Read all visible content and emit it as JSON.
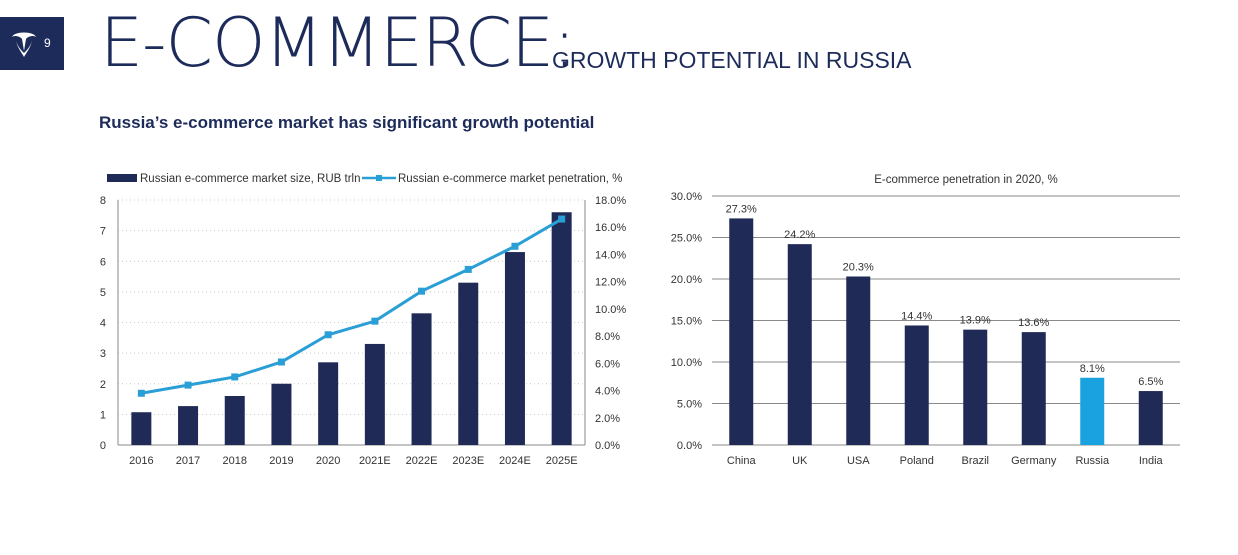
{
  "header": {
    "page_number": "9",
    "title": "E-COMMERCE:",
    "subtitle": "GROWTH POTENTIAL IN RUSSIA"
  },
  "section_title": "Russia’s e-commerce market has significant growth potential",
  "colors": {
    "navy": "#1c2b5a",
    "bar_navy": "#1f2a56",
    "line_blue": "#2a9fd6",
    "highlight_blue": "#1aa1e0"
  },
  "chart_data": [
    {
      "type": "bar+line",
      "categories": [
        "2016",
        "2017",
        "2018",
        "2019",
        "2020",
        "2021E",
        "2022E",
        "2023E",
        "2024E",
        "2025E"
      ],
      "series": [
        {
          "name": "Russian e-commerce market size, RUB trln",
          "type": "bar",
          "axis": "left",
          "values": [
            1.07,
            1.27,
            1.6,
            2.0,
            2.7,
            3.3,
            4.3,
            5.3,
            6.3,
            7.6
          ]
        },
        {
          "name": "Russian e-commerce market penetration, %",
          "type": "line",
          "axis": "right",
          "values": [
            3.8,
            4.4,
            5.0,
            6.1,
            8.1,
            9.1,
            11.3,
            12.9,
            14.6,
            16.6
          ]
        }
      ],
      "y_left": {
        "ticks": [
          "0",
          "1",
          "2",
          "3",
          "4",
          "5",
          "6",
          "7",
          "8"
        ],
        "min": 0,
        "max": 8
      },
      "y_right": {
        "ticks": [
          "0.0%",
          "2.0%",
          "4.0%",
          "6.0%",
          "8.0%",
          "10.0%",
          "12.0%",
          "14.0%",
          "16.0%",
          "18.0%"
        ],
        "min": 0,
        "max": 18
      },
      "grid": "dotted",
      "legend_placement": "top"
    },
    {
      "type": "bar",
      "title": "E-commerce penetration in 2020, %",
      "categories": [
        "China",
        "UK",
        "USA",
        "Poland",
        "Brazil",
        "Germany",
        "Russia",
        "India"
      ],
      "values": [
        27.3,
        24.2,
        20.3,
        14.4,
        13.9,
        13.6,
        8.1,
        6.5
      ],
      "data_labels": [
        "27.3%",
        "24.2%",
        "20.3%",
        "14.4%",
        "13.9%",
        "13.6%",
        "8.1%",
        "6.5%"
      ],
      "highlight": "Russia",
      "y_ticks": [
        "0.0%",
        "5.0%",
        "10.0%",
        "15.0%",
        "20.0%",
        "25.0%",
        "30.0%"
      ],
      "ylim": [
        0,
        30
      ],
      "grid": "solid"
    }
  ]
}
